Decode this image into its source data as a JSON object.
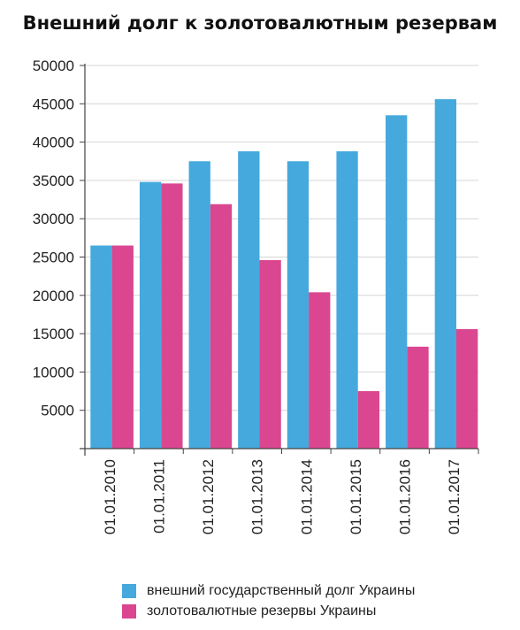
{
  "chart_data": {
    "type": "bar",
    "title": "Внешний долг к золотовалютным резервам",
    "xlabel": "",
    "ylabel": "",
    "categories": [
      "01.01.2010",
      "01.01.2011",
      "01.01.2012",
      "01.01.2013",
      "01.01.2014",
      "01.01.2015",
      "01.01.2016",
      "01.01.2017"
    ],
    "series": [
      {
        "name": "внешний государственный долг Украины",
        "color": "#45a9dd",
        "values": [
          26500,
          34800,
          37500,
          38800,
          37500,
          38800,
          43500,
          45600
        ]
      },
      {
        "name": "золотовалютные резервы Украины",
        "color": "#db4690",
        "values": [
          26500,
          34600,
          31900,
          24600,
          20400,
          7500,
          13300,
          15600
        ]
      }
    ],
    "ylim": [
      0,
      50000
    ],
    "yticks": [
      5000,
      10000,
      15000,
      20000,
      25000,
      30000,
      35000,
      40000,
      45000,
      50000
    ],
    "grid": true,
    "legend_position": "bottom"
  }
}
